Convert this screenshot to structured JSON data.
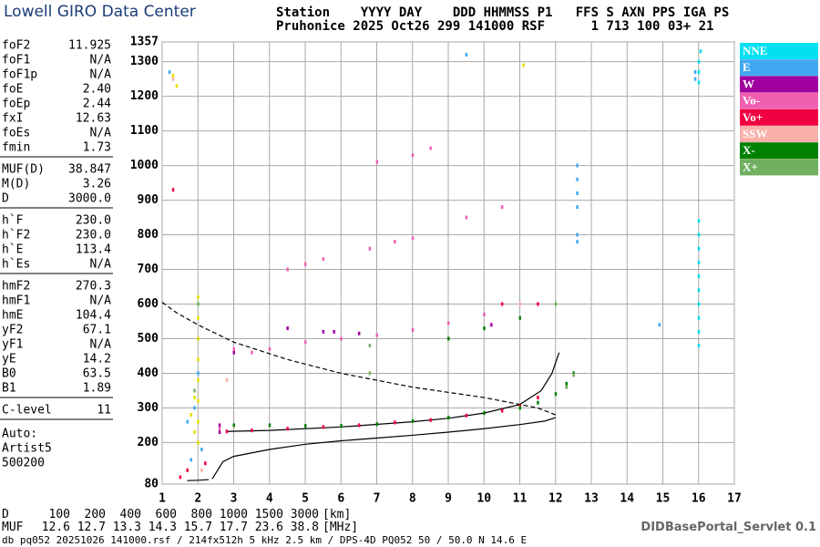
{
  "header": {
    "logo": "Lowell GIRO Data Center",
    "line1": "Station    YYYY DAY    DDD HHMMSS P1   FFS S AXN PPS IGA PS",
    "line2": "Pruhonice 2025 Oct26 299 141000 RSF      1 713 100 03+ 21"
  },
  "parameters": [
    [
      [
        "foF2",
        "11.925"
      ],
      [
        "foF1",
        "N/A"
      ],
      [
        "foF1p",
        "N/A"
      ],
      [
        "foE",
        "2.40"
      ],
      [
        "foEp",
        "2.44"
      ],
      [
        "fxI",
        "12.63"
      ],
      [
        "foEs",
        "N/A"
      ],
      [
        "fmin",
        "1.73"
      ]
    ],
    [
      [
        "MUF(D)",
        "38.847"
      ],
      [
        "M(D)",
        "3.26"
      ],
      [
        "D",
        "3000.0"
      ]
    ],
    [
      [
        "h`F",
        "230.0"
      ],
      [
        "h`F2",
        "230.0"
      ],
      [
        "h`E",
        "113.4"
      ],
      [
        "h`Es",
        "N/A"
      ]
    ],
    [
      [
        "hmF2",
        "270.3"
      ],
      [
        "hmF1",
        "N/A"
      ],
      [
        "hmE",
        "104.4"
      ],
      [
        "yF2",
        "67.1"
      ],
      [
        "yF1",
        "N/A"
      ],
      [
        "yE",
        "14.2"
      ],
      [
        "B0",
        "63.5"
      ],
      [
        "B1",
        "1.89"
      ]
    ],
    [
      [
        "C-level",
        "11"
      ]
    ]
  ],
  "autoscaling": [
    "Auto:",
    "Artist5",
    "500200"
  ],
  "chart_data": {
    "type": "scatter",
    "xlim": [
      1,
      17
    ],
    "xticks": [
      1,
      2,
      3,
      4,
      5,
      6,
      7,
      8,
      9,
      10,
      11,
      12,
      13,
      14,
      15,
      16,
      17
    ],
    "ylim": [
      80,
      1357
    ],
    "yticks": [
      80,
      200,
      300,
      400,
      500,
      600,
      700,
      800,
      900,
      1000,
      1100,
      1200,
      1300,
      1357
    ],
    "grid": true,
    "legend": "right",
    "series": [
      {
        "name": "NNE",
        "color": "#00e0f0",
        "x": [
          16,
          16,
          16,
          16,
          16,
          16,
          16,
          16,
          16,
          16,
          16,
          16,
          16,
          16.05
        ],
        "values": [
          480,
          520,
          560,
          600,
          640,
          680,
          720,
          760,
          800,
          840,
          1240,
          1270,
          1300,
          1330
        ]
      },
      {
        "name": "E",
        "color": "#40a8f0",
        "x": [
          12.6,
          12.6,
          12.6,
          12.6,
          12.6,
          12.6,
          15.9,
          15.9,
          1.2,
          1.8,
          1.9,
          2.0,
          1.7,
          2.1,
          14.9,
          9.5
        ],
        "values": [
          780,
          800,
          880,
          920,
          960,
          1000,
          1250,
          1270,
          1270,
          150,
          300,
          400,
          260,
          180,
          540,
          1320
        ]
      },
      {
        "name": "W",
        "color": "#a000a0",
        "x": [
          4.5,
          5.5,
          5.8,
          3.0,
          2.6,
          2.6,
          10.2,
          6.5
        ],
        "values": [
          530,
          520,
          520,
          460,
          250,
          230,
          540,
          515
        ]
      },
      {
        "name": "Vo-",
        "color": "#f060b0",
        "x": [
          3.0,
          3.5,
          4.0,
          5.0,
          6.0,
          7.0,
          8.0,
          9.0,
          10.0,
          11.0,
          4.5,
          5.0,
          5.5,
          6.8,
          7.5,
          8.0,
          7.0,
          8.0,
          8.5,
          9.5,
          10.5,
          2.6
        ],
        "values": [
          470,
          460,
          470,
          490,
          500,
          510,
          525,
          545,
          570,
          600,
          700,
          715,
          730,
          760,
          780,
          790,
          1010,
          1030,
          1050,
          850,
          880,
          240
        ]
      },
      {
        "name": "Vo+",
        "color": "#f00040",
        "x": [
          2.8,
          3.5,
          4.5,
          5.5,
          6.5,
          7.5,
          8.5,
          9.5,
          10.5,
          11.0,
          11.5,
          1.5,
          1.7,
          2.2,
          10.5,
          11.5,
          1.3
        ],
        "values": [
          232,
          235,
          240,
          245,
          250,
          258,
          265,
          278,
          292,
          305,
          330,
          100,
          120,
          140,
          600,
          600,
          930
        ]
      },
      {
        "name": "SSW",
        "color": "#f8b0a8",
        "x": [
          2.1,
          1.3,
          11.0,
          2.8
        ],
        "values": [
          120,
          1250,
          600,
          380
        ]
      },
      {
        "name": "X-",
        "color": "#008000",
        "x": [
          3.0,
          4.0,
          5.0,
          6.0,
          7.0,
          8.0,
          9.0,
          10.0,
          11.0,
          11.5,
          12.0,
          12.3,
          12.5,
          9.0,
          10.0,
          11.0
        ],
        "values": [
          250,
          250,
          248,
          248,
          253,
          262,
          272,
          285,
          300,
          315,
          340,
          370,
          400,
          500,
          530,
          560
        ]
      },
      {
        "name": "X+",
        "color": "#70b060",
        "x": [
          12.5,
          12.3,
          2.0,
          2.0,
          6.8,
          6.8,
          1.9,
          12.0
        ],
        "values": [
          395,
          360,
          600,
          500,
          400,
          480,
          350,
          600
        ]
      },
      {
        "color": "#e8e000",
        "x": [
          2.0,
          2.0,
          2.0,
          2.0,
          2.0,
          2.0,
          2.0,
          2.0,
          1.9,
          1.9,
          1.8,
          11.1,
          1.3,
          1.4
        ],
        "values": [
          200,
          260,
          320,
          380,
          440,
          500,
          560,
          620,
          230,
          330,
          280,
          1290,
          1260,
          1230
        ]
      }
    ],
    "profiles": [
      {
        "color": "#000000",
        "dash": false,
        "x": [
          2.4,
          2.7,
          3,
          4,
          5,
          6,
          7,
          8,
          9,
          10,
          11,
          11.7,
          12
        ],
        "values": [
          95,
          145,
          160,
          180,
          195,
          205,
          213,
          221,
          230,
          240,
          252,
          262,
          272
        ]
      },
      {
        "color": "#000000",
        "dash": true,
        "x": [
          12,
          11.5,
          10,
          8,
          6,
          4.5,
          3,
          2,
          1.4,
          1
        ],
        "values": [
          280,
          300,
          330,
          360,
          400,
          440,
          490,
          540,
          575,
          605
        ]
      },
      {
        "color": "#000000",
        "dash": false,
        "x": [
          2.8,
          4,
          6,
          8,
          9,
          10,
          11,
          11.6,
          11.9,
          12.1
        ],
        "values": [
          232,
          235,
          245,
          260,
          270,
          285,
          310,
          350,
          400,
          460
        ]
      },
      {
        "color": "#000000",
        "dash": false,
        "x": [
          1.7,
          2.0,
          2.3
        ],
        "values": [
          90,
          91,
          93
        ]
      }
    ]
  },
  "muf_table": {
    "d_label": "D",
    "d_values": [
      "100",
      "200",
      "400",
      "600",
      "800",
      "1000",
      "1500",
      "3000"
    ],
    "d_unit": "[km]",
    "muf_label": "MUF",
    "muf_values": [
      "12.6",
      "12.7",
      "13.3",
      "14.3",
      "15.7",
      "17.7",
      "23.6",
      "38.8"
    ],
    "muf_unit": "[MHz]"
  },
  "footer": {
    "file": "db pq052 20251026 141000.rsf / 214fx512h 5 kHz 2.5 km / DPS-4D PQ052 50 / 50.0 N 14.6 E",
    "servlet": "DIDBasePortal_Servlet 0.1"
  }
}
